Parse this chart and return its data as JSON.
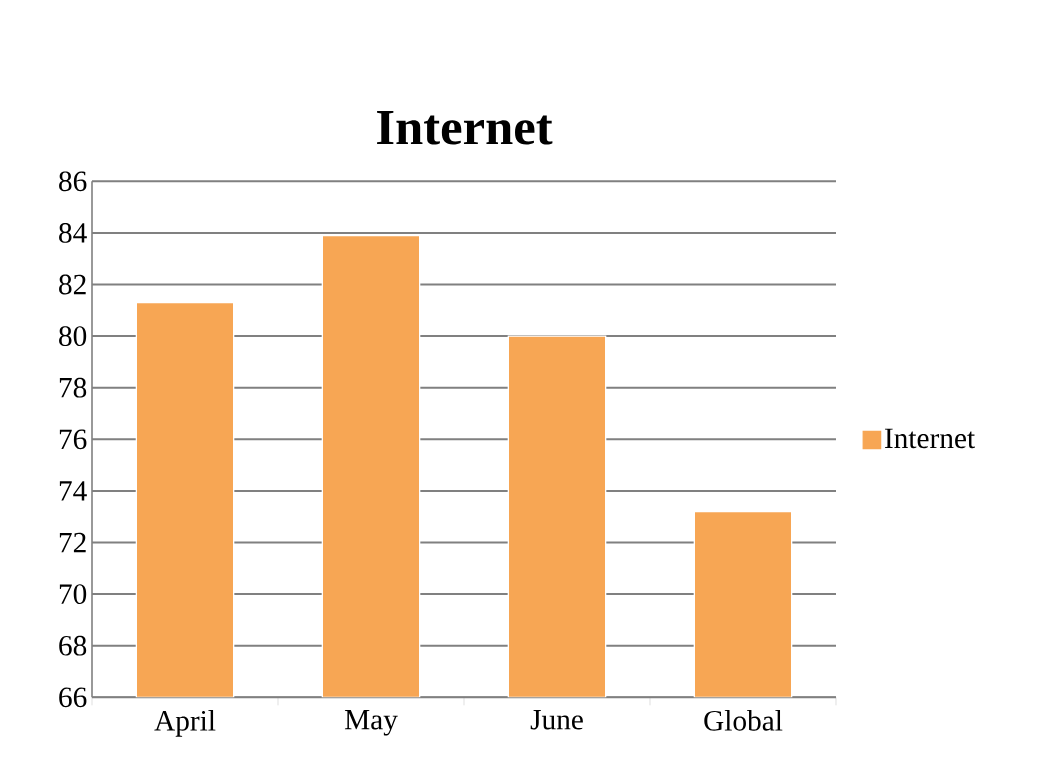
{
  "chart_data": {
    "type": "bar",
    "title": "Internet",
    "categories": [
      "April",
      "May",
      "June",
      "Global"
    ],
    "series": [
      {
        "name": "Internet",
        "color": "#f7a654",
        "values": [
          81.3,
          83.9,
          80.0,
          73.2
        ]
      }
    ],
    "ylim": [
      66,
      86
    ],
    "yticks": [
      66,
      68,
      70,
      72,
      74,
      76,
      78,
      80,
      82,
      84,
      86
    ],
    "grid": "y",
    "legend": "right"
  }
}
